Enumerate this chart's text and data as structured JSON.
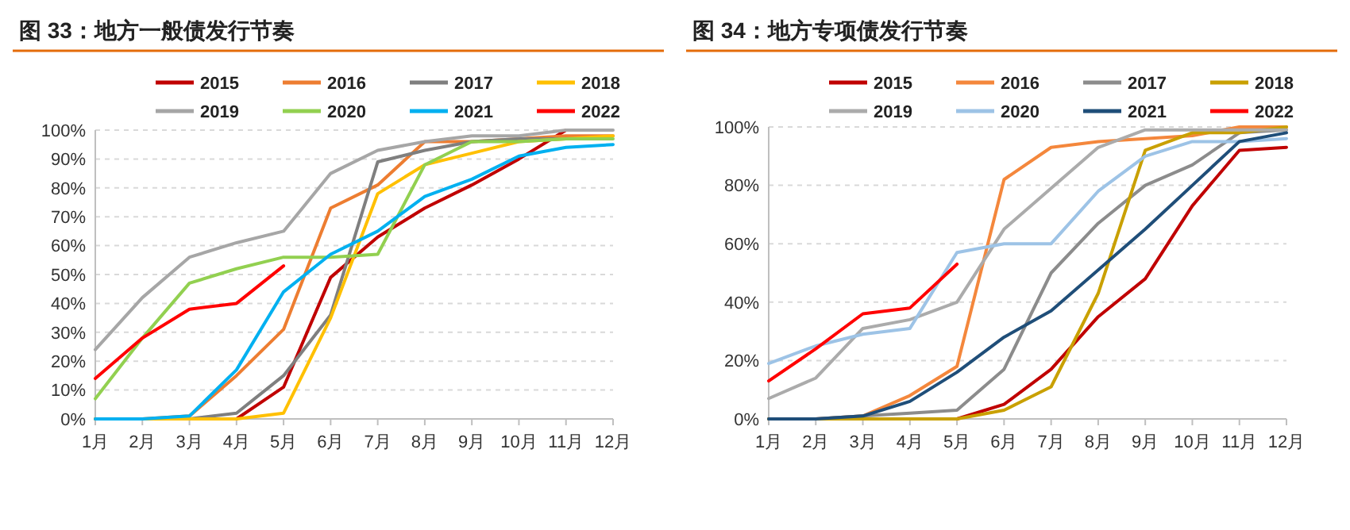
{
  "chart_data": [
    {
      "type": "line",
      "title": "图 33：地方一般债发行节奏",
      "categories": [
        "1月",
        "2月",
        "3月",
        "4月",
        "5月",
        "6月",
        "7月",
        "8月",
        "9月",
        "10月",
        "11月",
        "12月"
      ],
      "ylim": [
        0,
        100
      ],
      "yticks": [
        {
          "value": 0,
          "label": "0%"
        },
        {
          "value": 10,
          "label": "10%"
        },
        {
          "value": 20,
          "label": "20%"
        },
        {
          "value": 30,
          "label": "30%"
        },
        {
          "value": 40,
          "label": "40%"
        },
        {
          "value": 50,
          "label": "50%"
        },
        {
          "value": 60,
          "label": "60%"
        },
        {
          "value": 70,
          "label": "70%"
        },
        {
          "value": 80,
          "label": "80%"
        },
        {
          "value": 90,
          "label": "90%"
        },
        {
          "value": 100,
          "label": "100%"
        }
      ],
      "grid": "y",
      "legend": "top",
      "line_style": "solid",
      "series": [
        {
          "name": "2015",
          "color": "#c00000",
          "values": [
            null,
            null,
            null,
            0,
            11,
            49,
            63,
            73,
            81,
            90,
            100,
            null
          ]
        },
        {
          "name": "2016",
          "color": "#ed7d31",
          "values": [
            0,
            0,
            1,
            15,
            31,
            73,
            81,
            96,
            96,
            97,
            98,
            98
          ]
        },
        {
          "name": "2017",
          "color": "#7f7f7f",
          "values": [
            0,
            0,
            0,
            2,
            15,
            36,
            89,
            93,
            96,
            97,
            97,
            null
          ]
        },
        {
          "name": "2018",
          "color": "#ffc000",
          "values": [
            0,
            0,
            0,
            0,
            2,
            35,
            78,
            88,
            92,
            96,
            97,
            98
          ]
        },
        {
          "name": "2019",
          "color": "#a6a6a6",
          "values": [
            24,
            42,
            56,
            61,
            65,
            85,
            93,
            96,
            98,
            98,
            100,
            100
          ]
        },
        {
          "name": "2020",
          "color": "#92d050",
          "values": [
            7,
            28,
            47,
            52,
            56,
            56,
            57,
            88,
            96,
            96,
            97,
            97
          ]
        },
        {
          "name": "2021",
          "color": "#00b0f0",
          "values": [
            0,
            0,
            1,
            17,
            44,
            57,
            65,
            77,
            83,
            91,
            94,
            95
          ]
        },
        {
          "name": "2022",
          "color": "#ff0000",
          "values": [
            14,
            28,
            38,
            40,
            53,
            null,
            null,
            null,
            null,
            null,
            null,
            null
          ]
        }
      ]
    },
    {
      "type": "line",
      "title": "图 34：地方专项债发行节奏",
      "categories": [
        "1月",
        "2月",
        "3月",
        "4月",
        "5月",
        "6月",
        "7月",
        "8月",
        "9月",
        "10月",
        "11月",
        "12月"
      ],
      "ylim": [
        0,
        100
      ],
      "yticks": [
        {
          "value": 0,
          "label": "0%"
        },
        {
          "value": 20,
          "label": "20%"
        },
        {
          "value": 40,
          "label": "40%"
        },
        {
          "value": 60,
          "label": "60%"
        },
        {
          "value": 80,
          "label": "80%"
        },
        {
          "value": 100,
          "label": "100%"
        }
      ],
      "grid": "y",
      "legend": "top",
      "line_style": "solid",
      "series": [
        {
          "name": "2015",
          "color": "#c00000",
          "values": [
            null,
            null,
            null,
            0,
            0,
            5,
            17,
            35,
            48,
            73,
            92,
            93
          ]
        },
        {
          "name": "2016",
          "color": "#f4873c",
          "values": [
            0,
            0,
            1,
            8,
            18,
            82,
            93,
            95,
            96,
            97,
            100,
            100
          ]
        },
        {
          "name": "2017",
          "color": "#8c8c8c",
          "values": [
            0,
            0,
            1,
            2,
            3,
            17,
            50,
            67,
            80,
            87,
            98,
            99
          ]
        },
        {
          "name": "2018",
          "color": "#c9a000",
          "values": [
            0,
            0,
            0,
            0,
            0,
            3,
            11,
            43,
            92,
            98,
            98,
            100
          ]
        },
        {
          "name": "2019",
          "color": "#ababab",
          "values": [
            7,
            14,
            31,
            34,
            40,
            65,
            79,
            93,
            99,
            99,
            99,
            99
          ]
        },
        {
          "name": "2020",
          "color": "#9dc3e6",
          "values": [
            19,
            25,
            29,
            31,
            57,
            60,
            60,
            78,
            90,
            95,
            95,
            96
          ]
        },
        {
          "name": "2021",
          "color": "#1f4e79",
          "values": [
            0,
            0,
            1,
            6,
            16,
            28,
            37,
            51,
            65,
            80,
            95,
            98
          ]
        },
        {
          "name": "2022",
          "color": "#ff0000",
          "values": [
            13,
            24,
            36,
            38,
            53,
            null,
            null,
            null,
            null,
            null,
            null,
            null
          ]
        }
      ]
    }
  ]
}
